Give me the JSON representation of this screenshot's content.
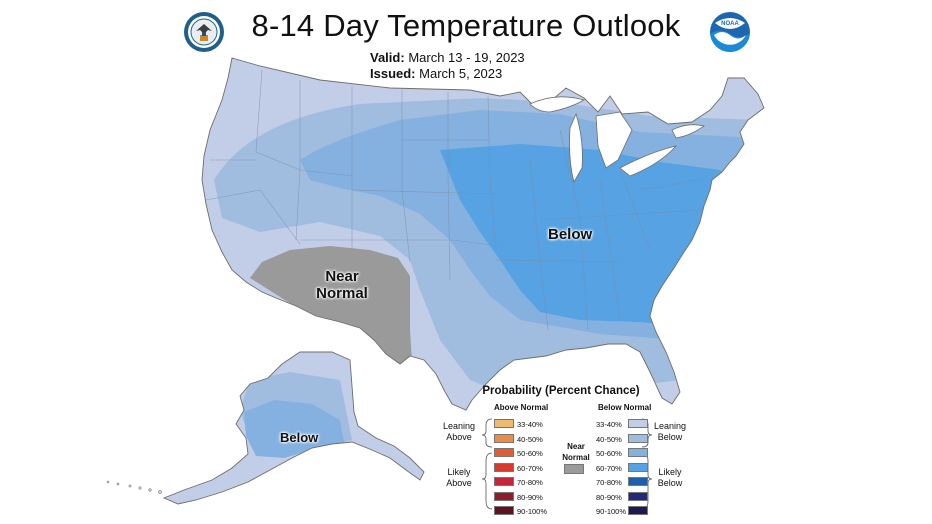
{
  "header": {
    "title": "8-14 Day Temperature Outlook",
    "valid_label": "Valid:",
    "valid_value": "March 13 - 19, 2023",
    "issued_label": "Issued:",
    "issued_value": "March 5, 2023",
    "noaa_logo_text": "NOAA"
  },
  "map": {
    "region_labels": {
      "below_conus": "Below",
      "near_normal": "Near\nNormal",
      "below_alaska": "Below"
    }
  },
  "legend": {
    "title": "Probability (Percent Chance)",
    "above_header": "Above Normal",
    "below_header": "Below Normal",
    "leaning_above": "Leaning\nAbove",
    "likely_above": "Likely\nAbove",
    "near_normal": "Near\nNormal",
    "leaning_below": "Leaning\nBelow",
    "likely_below": "Likely\nBelow",
    "above_items": [
      {
        "label": "33-40%",
        "color": "#f0b870"
      },
      {
        "label": "40-50%",
        "color": "#e98c48"
      },
      {
        "label": "50-60%",
        "color": "#e05c32"
      },
      {
        "label": "60-70%",
        "color": "#d63a2c"
      },
      {
        "label": "70-80%",
        "color": "#c3283a"
      },
      {
        "label": "80-90%",
        "color": "#8e1e2c"
      },
      {
        "label": "90-100%",
        "color": "#5e1420"
      }
    ],
    "below_items": [
      {
        "label": "33-40%",
        "color": "#c2cde8"
      },
      {
        "label": "40-50%",
        "color": "#a0bde0"
      },
      {
        "label": "50-60%",
        "color": "#84b1e0"
      },
      {
        "label": "60-70%",
        "color": "#56a2e2"
      },
      {
        "label": "70-80%",
        "color": "#1d5fa8"
      },
      {
        "label": "80-90%",
        "color": "#232a78"
      },
      {
        "label": "90-100%",
        "color": "#1d1a50"
      }
    ],
    "near_normal_color": "#9a9a9a"
  }
}
